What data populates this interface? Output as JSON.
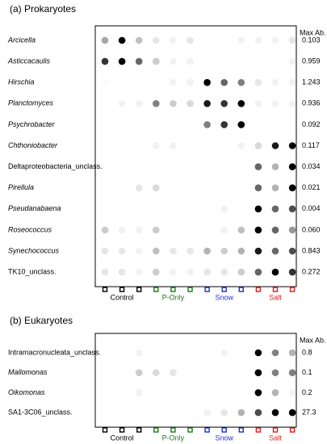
{
  "chart_data": [
    {
      "type": "dotplot",
      "title": "(a) Prokaryotes",
      "value_label": "Max Ab.",
      "groups": [
        {
          "name": "Control",
          "color": "#000000"
        },
        {
          "name": "P-Only",
          "color": "#1a7a1a"
        },
        {
          "name": "Snow",
          "color": "#1f2fcf"
        },
        {
          "name": "Salt",
          "color": "#e01b1b"
        }
      ],
      "rows": [
        {
          "name": "Arcicella",
          "italic": true,
          "max_ab": 0.103,
          "values": [
            0.35,
            1.0,
            0.25,
            0.1,
            0.05,
            0.1,
            0,
            0,
            0.05,
            0.05,
            0.05,
            0.1
          ]
        },
        {
          "name": "Asticcacaulis",
          "italic": true,
          "max_ab": 0.959,
          "values": [
            0.8,
            1.0,
            0.6,
            0.2,
            0.05,
            0.05,
            0,
            0,
            0,
            0,
            0,
            0.05
          ]
        },
        {
          "name": "Hirschia",
          "italic": true,
          "max_ab": 1.243,
          "values": [
            0.02,
            0,
            0,
            0,
            0.05,
            0.05,
            1.0,
            0.6,
            0.5,
            0.1,
            0.05,
            0.05
          ]
        },
        {
          "name": "Planctomyces",
          "italic": true,
          "max_ab": 0.936,
          "values": [
            0,
            0.05,
            0.05,
            0.5,
            0.2,
            0.15,
            0.9,
            0.8,
            1.0,
            0.05,
            0.05,
            0.05
          ]
        },
        {
          "name": "Psychrobacter",
          "italic": true,
          "max_ab": 0.092,
          "values": [
            0,
            0,
            0,
            0,
            0,
            0,
            0.5,
            0.8,
            1.0,
            0,
            0,
            0
          ]
        },
        {
          "name": "Chthoniobacter",
          "italic": true,
          "max_ab": 0.117,
          "values": [
            0,
            0,
            0,
            0.05,
            0.05,
            0,
            0,
            0,
            0.05,
            0.15,
            0.9,
            1.0
          ]
        },
        {
          "name": "Deltaproteobacteria_unclass.",
          "italic": false,
          "max_ab": 0.034,
          "values": [
            0,
            0,
            0,
            0,
            0,
            0,
            0,
            0,
            0,
            0.6,
            0.3,
            1.0
          ]
        },
        {
          "name": "Pirellula",
          "italic": true,
          "max_ab": 0.021,
          "values": [
            0,
            0,
            0.1,
            0.15,
            0,
            0,
            0,
            0,
            0,
            0.6,
            0.3,
            1.0
          ]
        },
        {
          "name": "Pseudanabaena",
          "italic": true,
          "max_ab": 0.004,
          "values": [
            0,
            0,
            0,
            0,
            0,
            0,
            0,
            0.05,
            0,
            1.0,
            0.6,
            0.7
          ]
        },
        {
          "name": "Roseococcus",
          "italic": true,
          "max_ab": 0.06,
          "max_ab_label": "0.060",
          "values": [
            0.2,
            0.05,
            0.05,
            0.2,
            0,
            0,
            0,
            0.05,
            0.25,
            1.0,
            0.6,
            0.4
          ]
        },
        {
          "name": "Synechococcus",
          "italic": true,
          "max_ab": 0.843,
          "values": [
            0.1,
            0.1,
            0.05,
            0.25,
            0.1,
            0.1,
            0.3,
            0.2,
            0.3,
            0.9,
            0.6,
            0.7
          ]
        },
        {
          "name": "TK10_unclass.",
          "italic": false,
          "max_ab": 0.272,
          "values": [
            0.1,
            0.1,
            0.05,
            0.2,
            0.05,
            0.05,
            0.1,
            0.1,
            0.2,
            0.6,
            1.0,
            0.8
          ]
        }
      ]
    },
    {
      "type": "dotplot",
      "title": "(b) Eukaryotes",
      "value_label": "Max Ab.",
      "groups": [
        {
          "name": "Control",
          "color": "#000000"
        },
        {
          "name": "P-Only",
          "color": "#1a7a1a"
        },
        {
          "name": "Snow",
          "color": "#1f2fcf"
        },
        {
          "name": "Salt",
          "color": "#e01b1b"
        }
      ],
      "rows": [
        {
          "name": "Intramacronucleata_unclass.",
          "italic": false,
          "max_ab": 0.8,
          "values": [
            0,
            0,
            0.05,
            0,
            0,
            0,
            0,
            0.05,
            0,
            1.0,
            0.5,
            0.3
          ]
        },
        {
          "name": "Mallomonas",
          "italic": true,
          "max_ab": 0.1,
          "values": [
            0,
            0,
            0.2,
            0.15,
            0.1,
            0,
            0,
            0,
            0,
            1.0,
            0.5,
            0.5
          ]
        },
        {
          "name": "Oikomonas",
          "italic": true,
          "max_ab": 0.2,
          "values": [
            0,
            0,
            0.05,
            0,
            0,
            0,
            0,
            0,
            0,
            1.0,
            0.3,
            0.05
          ]
        },
        {
          "name": "SA1-3C06_unclass.",
          "italic": false,
          "max_ab": 27.3,
          "values": [
            0,
            0,
            0,
            0,
            0,
            0,
            0.05,
            0.1,
            0.3,
            0.7,
            1.0,
            1.0
          ]
        }
      ]
    }
  ]
}
